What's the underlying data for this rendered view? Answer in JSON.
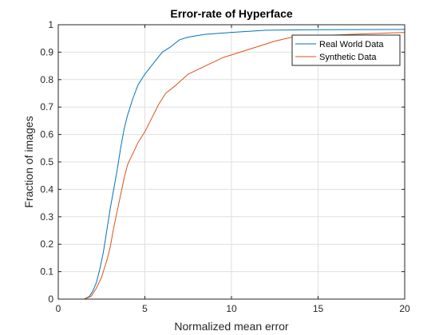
{
  "chart_data": {
    "type": "line",
    "title": "Error-rate of Hyperface",
    "xlabel": "Normalized mean error",
    "ylabel": "Fraction of images",
    "xlim": [
      0,
      20
    ],
    "ylim": [
      0,
      1
    ],
    "xticks": [
      0,
      5,
      10,
      15,
      20
    ],
    "yticks": [
      0,
      0.1,
      0.2,
      0.3,
      0.4,
      0.5,
      0.6,
      0.7,
      0.8,
      0.9,
      1
    ],
    "xtick_labels": [
      "0",
      "5",
      "10",
      "15",
      "20"
    ],
    "ytick_labels": [
      "0",
      "0.1",
      "0.2",
      "0.3",
      "0.4",
      "0.5",
      "0.6",
      "0.7",
      "0.8",
      "0.9",
      "1"
    ],
    "grid": true,
    "legend_position": "top-right",
    "series": [
      {
        "name": "Real World Data",
        "color": "#0072bd",
        "points": [
          [
            1.5,
            0
          ],
          [
            1.8,
            0.01
          ],
          [
            2.0,
            0.03
          ],
          [
            2.2,
            0.06
          ],
          [
            2.4,
            0.11
          ],
          [
            2.6,
            0.17
          ],
          [
            2.8,
            0.25
          ],
          [
            3.0,
            0.33
          ],
          [
            3.2,
            0.4
          ],
          [
            3.4,
            0.47
          ],
          [
            3.6,
            0.55
          ],
          [
            3.8,
            0.62
          ],
          [
            4.0,
            0.67
          ],
          [
            4.3,
            0.73
          ],
          [
            4.6,
            0.78
          ],
          [
            5.0,
            0.82
          ],
          [
            5.5,
            0.86
          ],
          [
            6.0,
            0.9
          ],
          [
            6.5,
            0.92
          ],
          [
            7.0,
            0.945
          ],
          [
            7.5,
            0.955
          ],
          [
            8.5,
            0.965
          ],
          [
            10.0,
            0.972
          ],
          [
            12.0,
            0.98
          ],
          [
            15.0,
            0.982
          ],
          [
            20.0,
            0.983
          ]
        ]
      },
      {
        "name": "Synthetic Data",
        "color": "#d95319",
        "points": [
          [
            1.5,
            0
          ],
          [
            1.9,
            0.01
          ],
          [
            2.2,
            0.04
          ],
          [
            2.5,
            0.08
          ],
          [
            2.8,
            0.14
          ],
          [
            3.0,
            0.19
          ],
          [
            3.2,
            0.26
          ],
          [
            3.4,
            0.32
          ],
          [
            3.6,
            0.38
          ],
          [
            3.8,
            0.44
          ],
          [
            4.0,
            0.49
          ],
          [
            4.3,
            0.53
          ],
          [
            4.6,
            0.57
          ],
          [
            5.0,
            0.61
          ],
          [
            5.4,
            0.66
          ],
          [
            5.8,
            0.71
          ],
          [
            6.2,
            0.75
          ],
          [
            6.8,
            0.78
          ],
          [
            7.5,
            0.82
          ],
          [
            8.5,
            0.85
          ],
          [
            9.5,
            0.88
          ],
          [
            10.5,
            0.9
          ],
          [
            11.5,
            0.92
          ],
          [
            12.5,
            0.94
          ],
          [
            13.5,
            0.955
          ],
          [
            15.0,
            0.96
          ],
          [
            17.0,
            0.965
          ],
          [
            20.0,
            0.972
          ]
        ]
      }
    ]
  }
}
